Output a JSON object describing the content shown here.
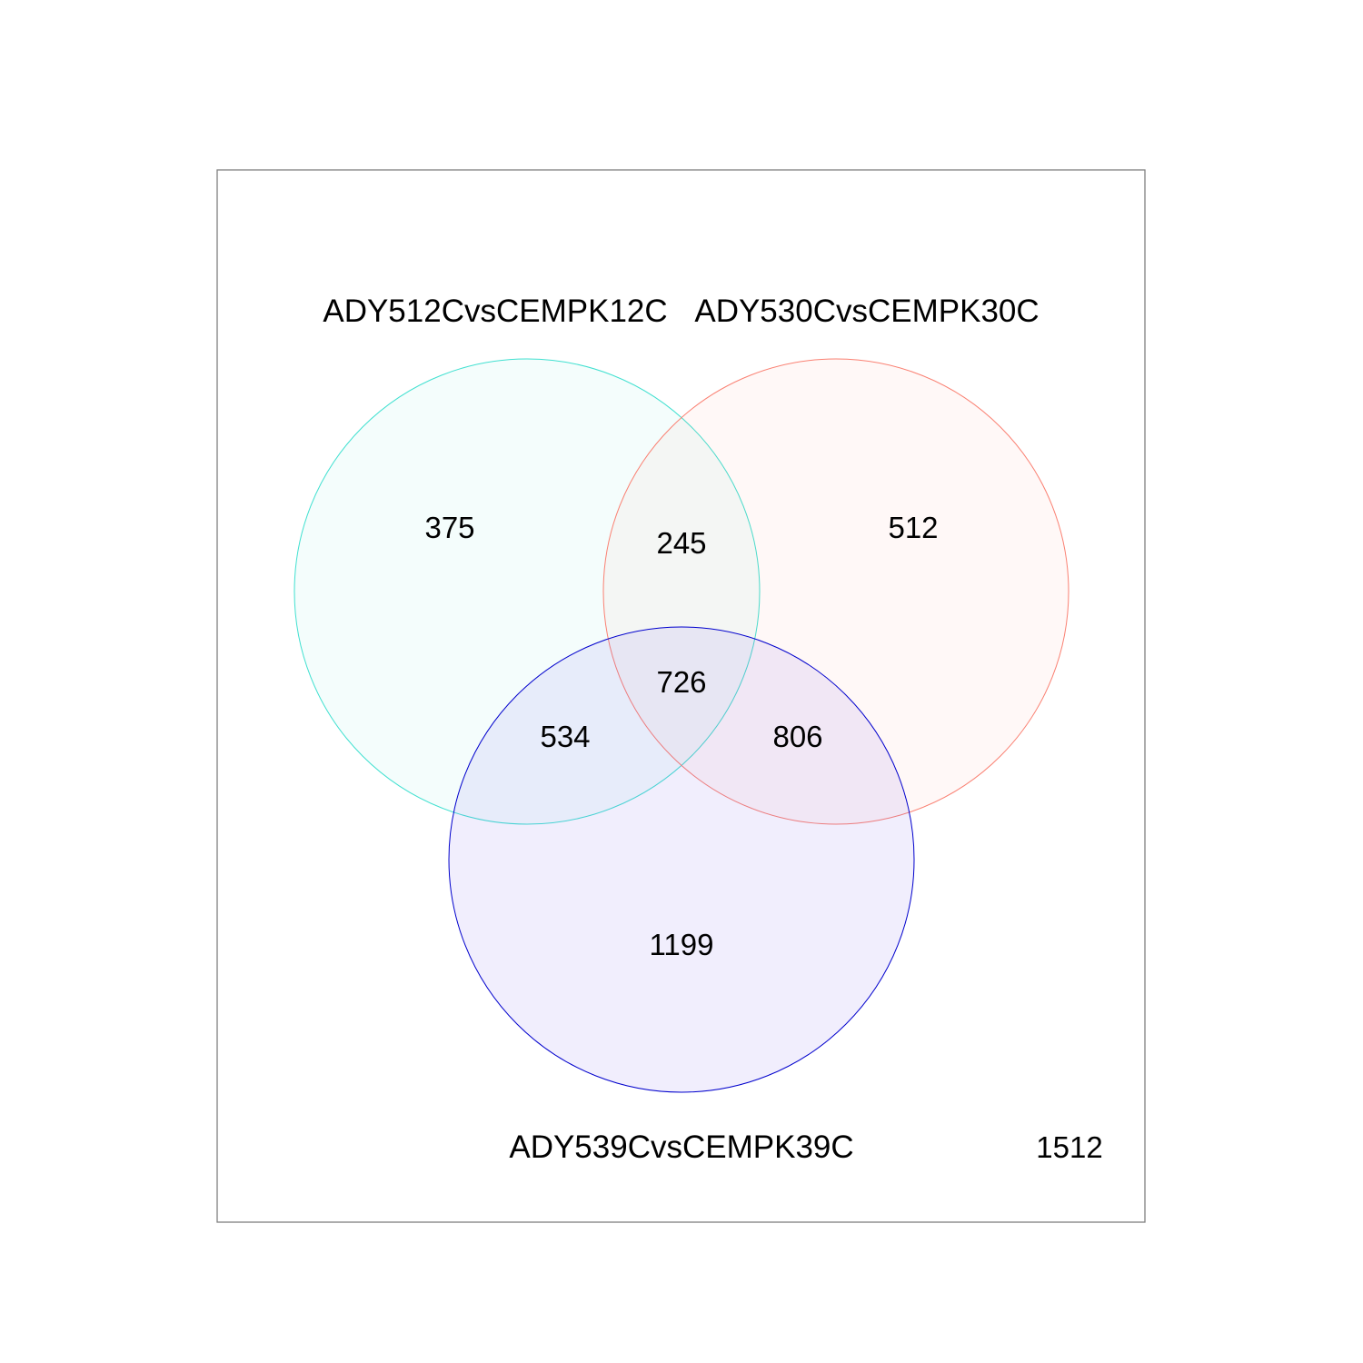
{
  "sets": [
    {
      "id": "a",
      "name": "ADY512CvsCEMPK12C",
      "stroke": "#40e0d0",
      "fill": "#40e0d0"
    },
    {
      "id": "b",
      "name": "ADY530CvsCEMPK30C",
      "stroke": "#fa8072",
      "fill": "#fa8072"
    },
    {
      "id": "c",
      "name": "ADY539CvsCEMPK39C",
      "stroke": "#0000cd",
      "fill": "#7b68ee"
    }
  ],
  "regions": {
    "a_only": "375",
    "b_only": "512",
    "c_only": "1199",
    "ab": "245",
    "ac": "534",
    "bc": "806",
    "abc": "726",
    "none": "1512"
  },
  "colors": {
    "frame": "#808080",
    "background": "#ffffff"
  }
}
